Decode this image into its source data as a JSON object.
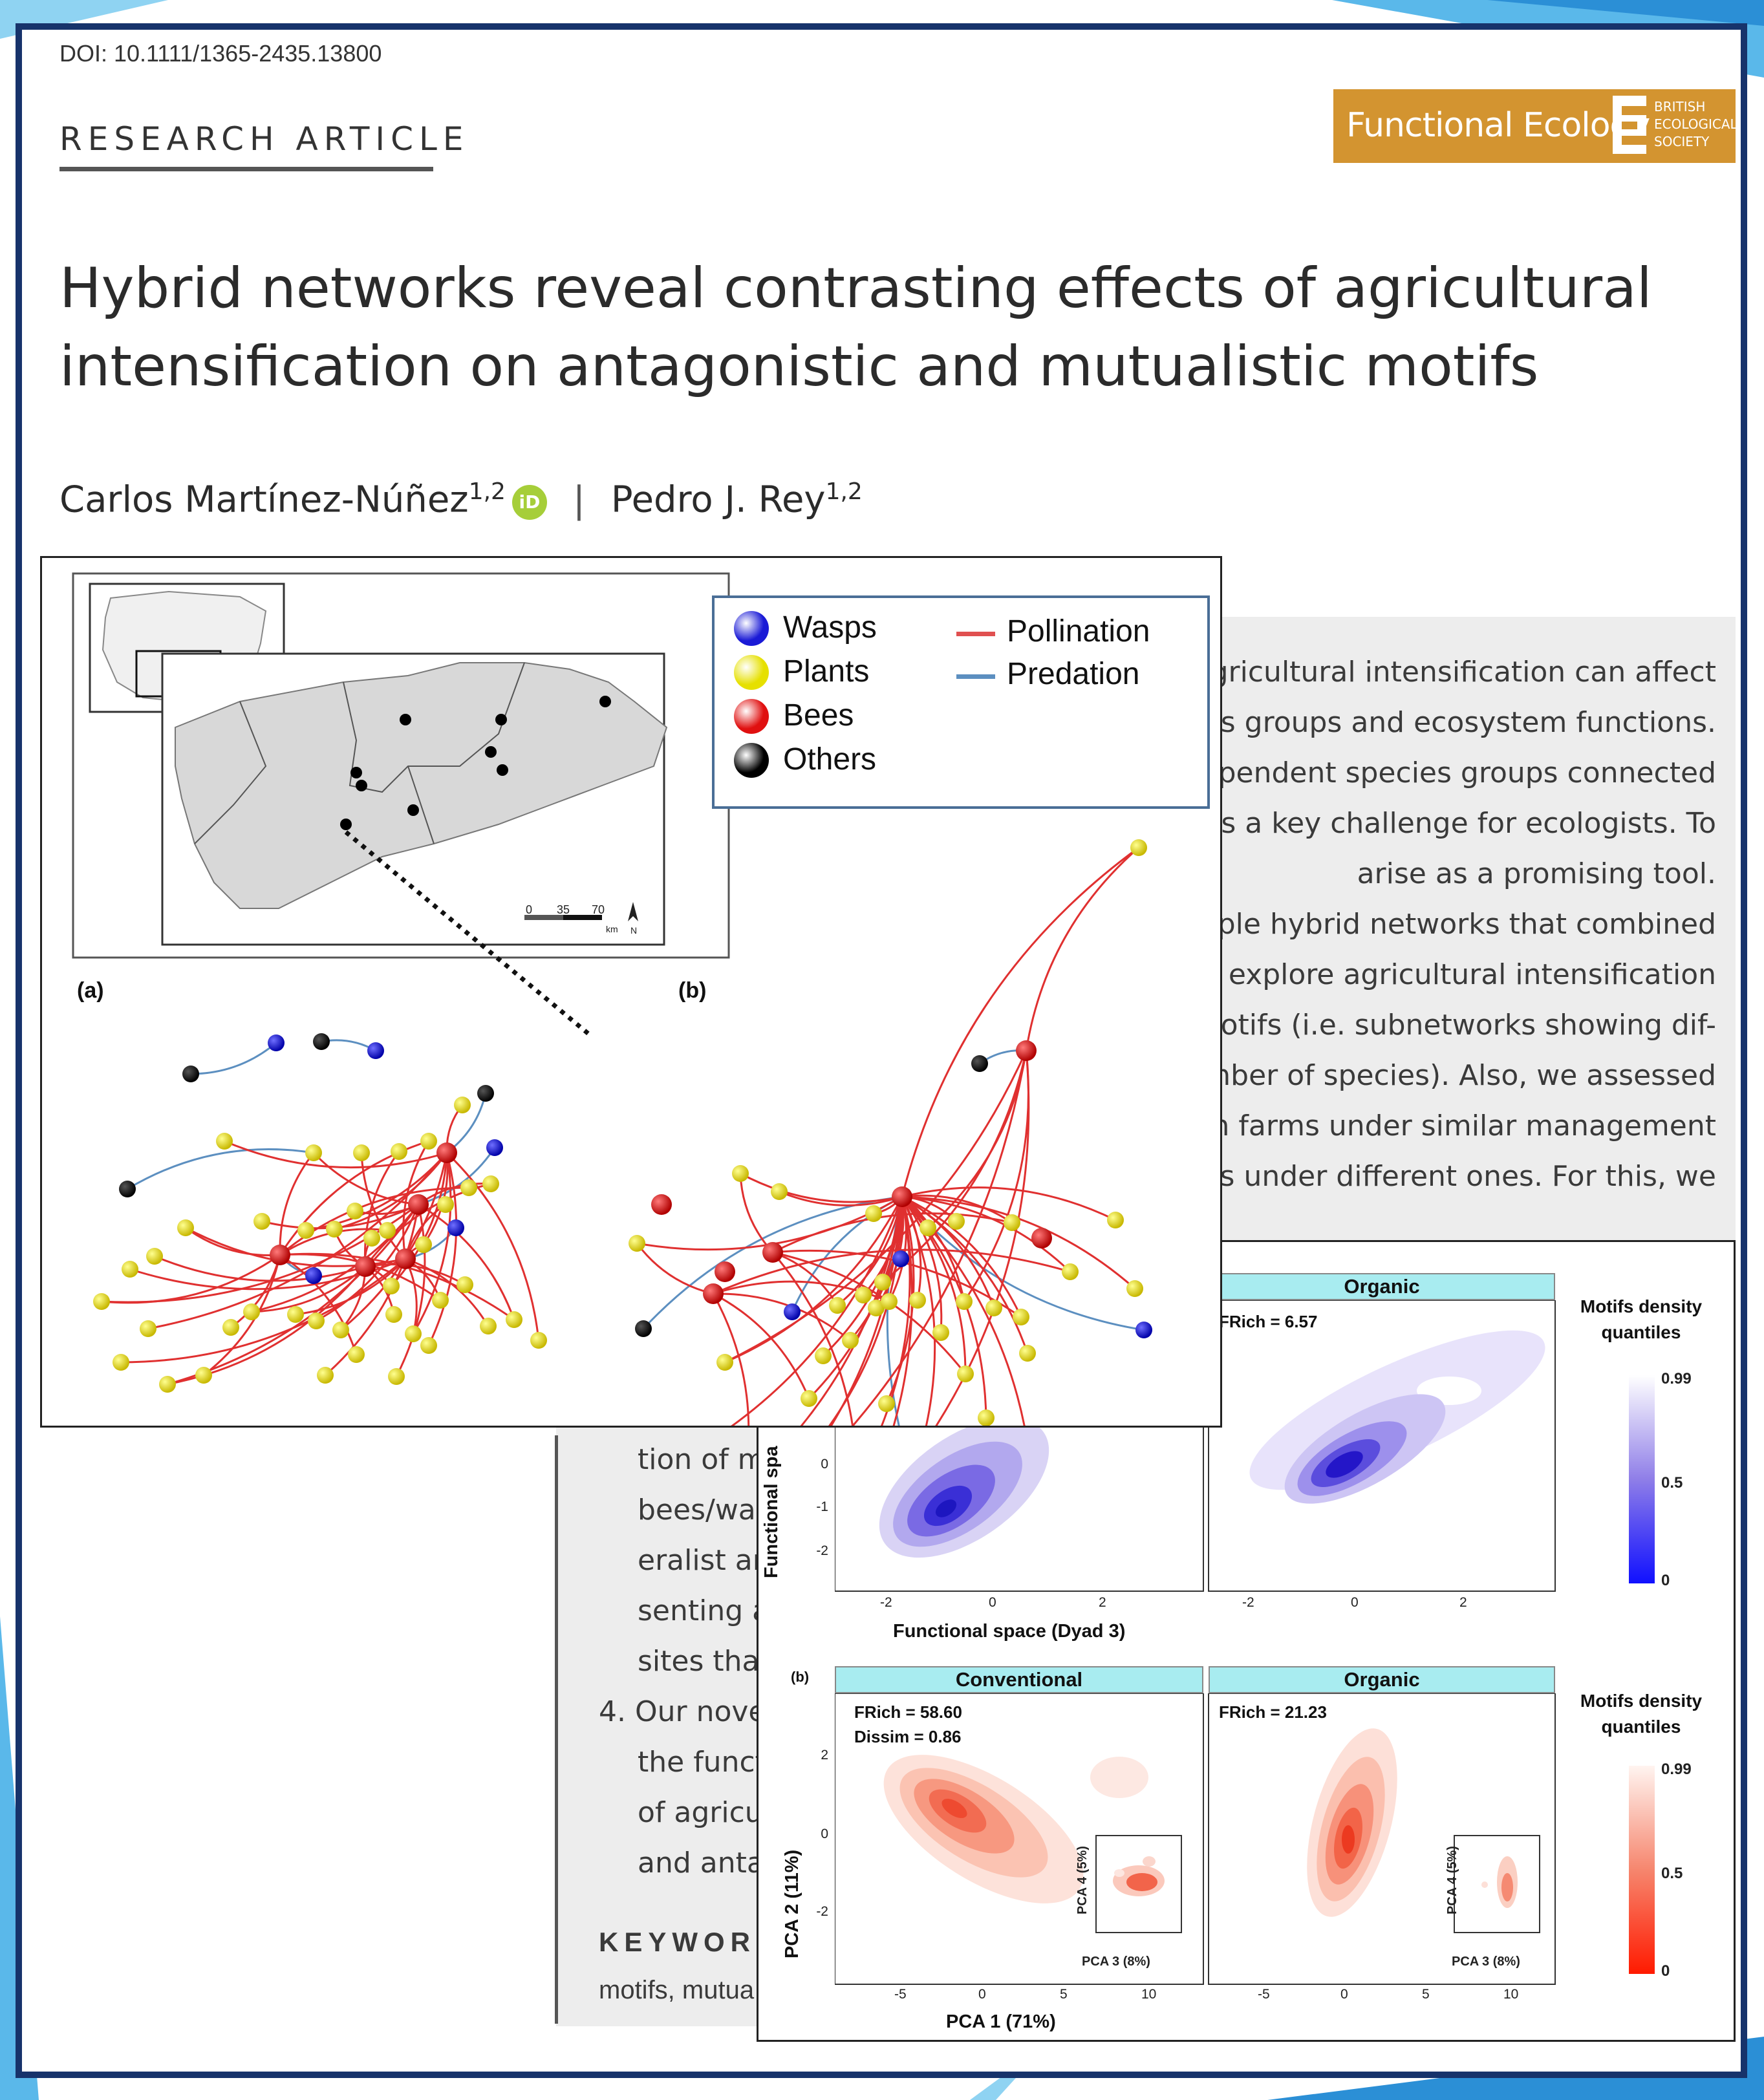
{
  "doi": "DOI: 10.1111/1365-2435.13800",
  "article_type": "RESEARCH ARTICLE",
  "journal": {
    "name": "Functional Ecology",
    "society_line1": "BRITISH",
    "society_line2": "ECOLOGICAL",
    "society_line3": "SOCIETY",
    "color": "#d39430"
  },
  "title_line1": "Hybrid networks reveal contrasting effects of agricultural",
  "title_line2": "intensification on antagonistic and mutualistic motifs",
  "authors": {
    "author1": "Carlos Martínez-Núñez",
    "author1_aff": "1,2",
    "orcid": "iD",
    "separator": "|",
    "author2": "Pedro J. Rey",
    "author2_aff": "1,2"
  },
  "abstract_right_lines": [
    "agricultural intensification can affect",
    "es groups and ecosystem functions.",
    "dependent species groups connected",
    "s is a key challenge for ecologists. To",
    "arise as a promising tool.",
    "mple hybrid networks that combined",
    "o explore agricultural intensification",
    "motifs (i.e. subnetworks showing dif-",
    "umber of species). Also, we assessed",
    "s on farms under similar management",
    "ns under different ones. For this, we"
  ],
  "abstract_left_lines": [
    "tion of m",
    "bees/was",
    "eralist an",
    "senting a",
    "sites thar",
    "4.  Our nove",
    "the funct",
    "of agricu",
    "and anta"
  ],
  "keywords_label": "KEYWORDS",
  "keywords_value": "motifs, mutua",
  "network_figure": {
    "legend": {
      "nodes": [
        {
          "label": "Wasps",
          "color": "#1a1ad6"
        },
        {
          "label": "Plants",
          "color": "#e6e000"
        },
        {
          "label": "Bees",
          "color": "#e01010"
        },
        {
          "label": "Others",
          "color": "#000000"
        }
      ],
      "links": [
        {
          "label": "Pollination",
          "color": "#e05050"
        },
        {
          "label": "Predation",
          "color": "#5c8fc0"
        }
      ]
    },
    "label_a": "(a)",
    "label_b": "(b)",
    "scale": {
      "t0": "0",
      "t1": "35",
      "t2": "70",
      "unit": "km",
      "north": "N"
    }
  },
  "density_figure": {
    "label_b": "(b)",
    "top": {
      "panel_title": "Organic",
      "frich": "FRich = 6.57",
      "ylabel": "Functional spa",
      "xlabel": "Functional space (Dyad 3)",
      "yticks": [
        "0",
        "-1",
        "-2"
      ],
      "xticks_left": [
        "-2",
        "0",
        "2"
      ],
      "xticks_right": [
        "-2",
        "0",
        "2"
      ],
      "colorbar_title_1": "Motifs density",
      "colorbar_title_2": "quantiles",
      "colorbar_ticks": [
        "0.99",
        "0.5",
        "0"
      ]
    },
    "bottom": {
      "panel_left_title": "Conventional",
      "panel_right_title": "Organic",
      "frich_left": "FRich = 58.60",
      "dissim_left": "Dissim = 0.86",
      "frich_right": "FRich = 21.23",
      "ylabel": "PCA 2 (11%)",
      "xlabel": "PCA 1 (71%)",
      "yticks": [
        "2",
        "0",
        "-2"
      ],
      "xticks_left": [
        "-5",
        "0",
        "5",
        "10"
      ],
      "xticks_right": [
        "-5",
        "0",
        "5",
        "10"
      ],
      "inset_ylabel": "PCA 4 (5%)",
      "inset_xlabel": "PCA 3 (8%)",
      "colorbar_title_1": "Motifs density",
      "colorbar_title_2": "quantiles",
      "colorbar_ticks": [
        "0.99",
        "0.5",
        "0"
      ]
    }
  }
}
